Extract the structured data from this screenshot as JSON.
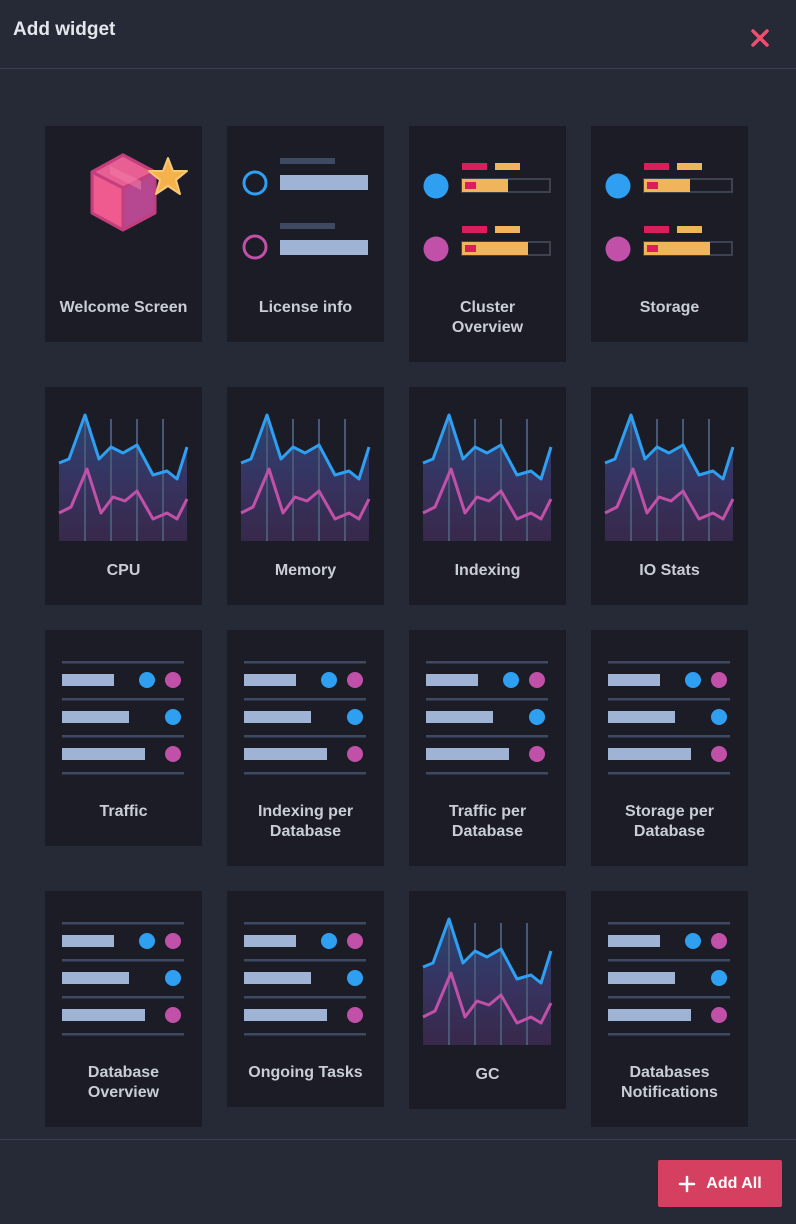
{
  "dialog": {
    "title": "Add widget"
  },
  "footer": {
    "add_all_label": "Add All"
  },
  "colors": {
    "accent": "#d64060",
    "blue": "#2f9ff2",
    "pink": "#c150a8",
    "bar": "#9fb3d4",
    "orange": "#f0b45a",
    "red": "#d91e5b"
  },
  "widgets": [
    {
      "label": "Welcome Screen",
      "icon": "package-star-icon"
    },
    {
      "label": "License info",
      "icon": "license-list-icon"
    },
    {
      "label": "Cluster\nOverview",
      "icon": "cluster-bars-icon"
    },
    {
      "label": "Storage",
      "icon": "storage-bars-icon"
    },
    {
      "label": "CPU",
      "icon": "line-chart-icon"
    },
    {
      "label": "Memory",
      "icon": "line-chart-icon"
    },
    {
      "label": "Indexing",
      "icon": "line-chart-icon"
    },
    {
      "label": "IO Stats",
      "icon": "line-chart-icon"
    },
    {
      "label": "Traffic",
      "icon": "table-list-icon"
    },
    {
      "label": "Indexing per\nDatabase",
      "icon": "table-list-icon"
    },
    {
      "label": "Traffic per\nDatabase",
      "icon": "table-list-icon"
    },
    {
      "label": "Storage per\nDatabase",
      "icon": "table-list-icon"
    },
    {
      "label": "Database\nOverview",
      "icon": "table-list-icon"
    },
    {
      "label": "Ongoing Tasks",
      "icon": "table-list-icon"
    },
    {
      "label": "GC",
      "icon": "line-chart-icon"
    },
    {
      "label": "Databases\nNotifications",
      "icon": "table-list-icon"
    }
  ]
}
